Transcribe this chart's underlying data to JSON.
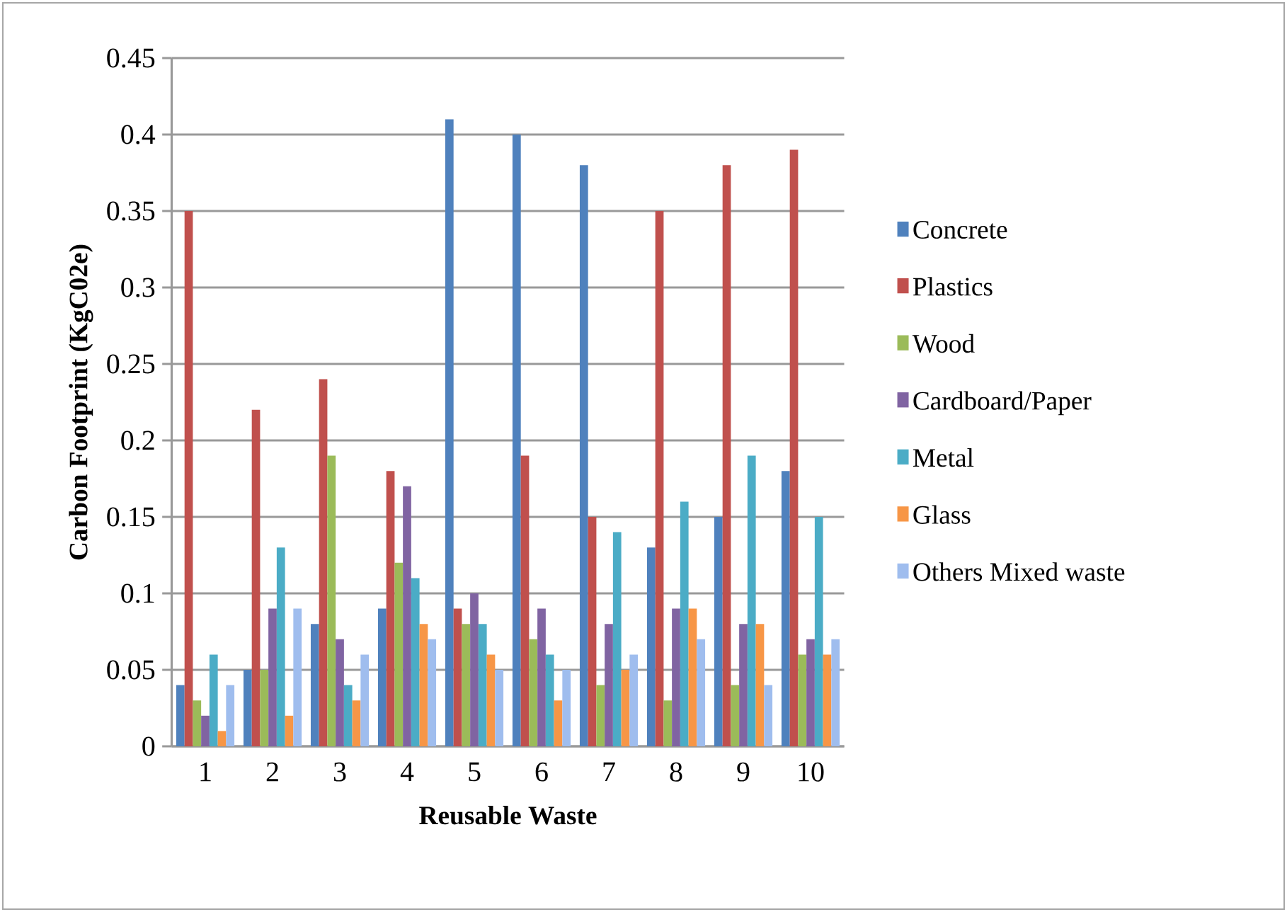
{
  "chart_data": {
    "type": "bar",
    "xlabel": "Reusable Waste",
    "ylabel": "Carbon Footprint (KgC02e)",
    "categories": [
      "1",
      "2",
      "3",
      "4",
      "5",
      "6",
      "7",
      "8",
      "9",
      "10"
    ],
    "series": [
      {
        "name": "Concrete",
        "color": "#4f81bd",
        "values": [
          0.04,
          0.05,
          0.08,
          0.09,
          0.41,
          0.4,
          0.38,
          0.13,
          0.15,
          0.18
        ]
      },
      {
        "name": "Plastics",
        "color": "#c0504d",
        "values": [
          0.35,
          0.22,
          0.24,
          0.18,
          0.09,
          0.19,
          0.15,
          0.35,
          0.38,
          0.39
        ]
      },
      {
        "name": "Wood",
        "color": "#9bbb59",
        "values": [
          0.03,
          0.05,
          0.19,
          0.12,
          0.08,
          0.07,
          0.04,
          0.03,
          0.04,
          0.06
        ]
      },
      {
        "name": "Cardboard/Paper",
        "color": "#8064a2",
        "values": [
          0.02,
          0.09,
          0.07,
          0.17,
          0.1,
          0.09,
          0.08,
          0.09,
          0.08,
          0.07
        ]
      },
      {
        "name": "Metal",
        "color": "#4bacc6",
        "values": [
          0.06,
          0.13,
          0.04,
          0.11,
          0.08,
          0.06,
          0.14,
          0.16,
          0.19,
          0.15
        ]
      },
      {
        "name": "Glass",
        "color": "#f79646",
        "values": [
          0.01,
          0.02,
          0.03,
          0.08,
          0.06,
          0.03,
          0.05,
          0.09,
          0.08,
          0.06
        ]
      },
      {
        "name": "Others Mixed waste",
        "color": "#9fbdee",
        "values": [
          0.04,
          0.09,
          0.06,
          0.07,
          0.05,
          0.05,
          0.06,
          0.07,
          0.04,
          0.07
        ]
      }
    ],
    "ylim": [
      0,
      0.45
    ],
    "yticks": [
      0,
      0.05,
      0.1,
      0.15,
      0.2,
      0.25,
      0.3,
      0.35,
      0.4,
      0.45
    ],
    "grid": "y",
    "legend": "right"
  }
}
